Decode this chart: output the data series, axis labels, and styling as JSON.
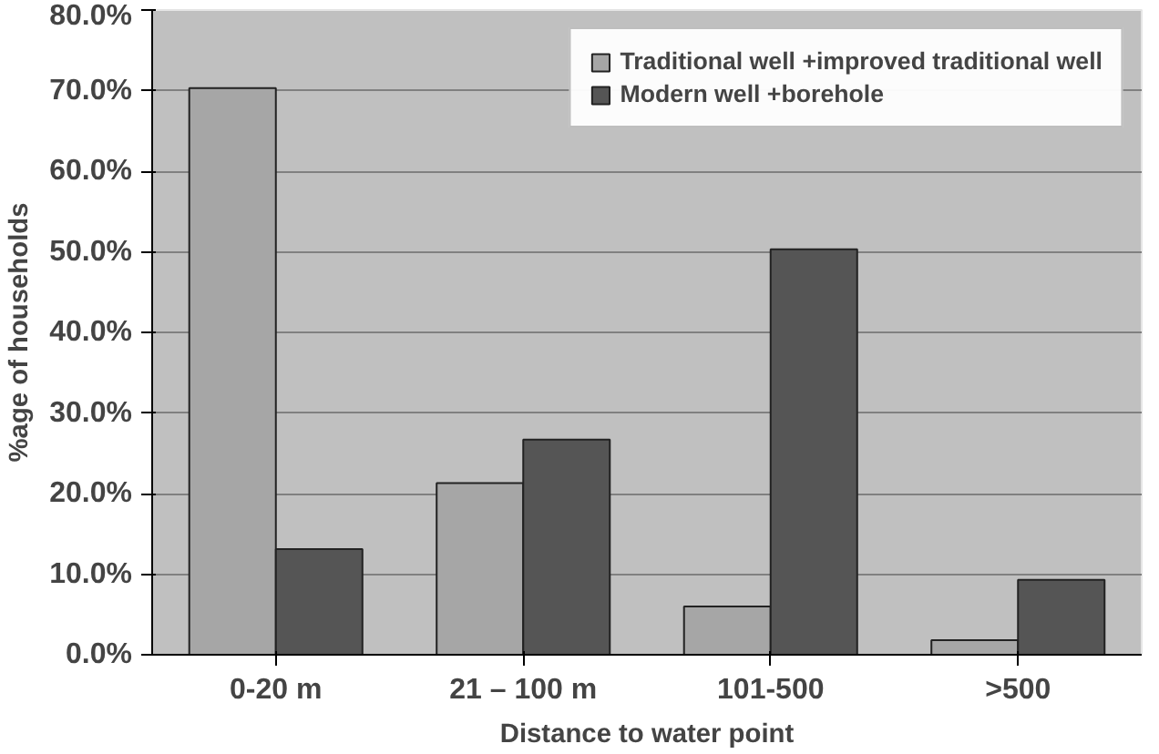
{
  "chart_data": {
    "type": "bar",
    "xlabel": "Distance to water point",
    "ylabel": "%age of households",
    "categories": [
      "0-20 m",
      "21 – 100 m",
      "101-500",
      ">500"
    ],
    "series": [
      {
        "name": "Traditional well +improved traditional well",
        "color": "#a6a6a6",
        "values": [
          70.3,
          21.3,
          6.0,
          1.8
        ]
      },
      {
        "name": "Modern well +borehole",
        "color": "#555555",
        "values": [
          13.1,
          26.7,
          50.3,
          9.3
        ]
      }
    ],
    "ylim": [
      0,
      80
    ],
    "yticks": [
      {
        "value": 0,
        "label": "0.0%"
      },
      {
        "value": 10,
        "label": "10.0%"
      },
      {
        "value": 20,
        "label": "20.0%"
      },
      {
        "value": 30,
        "label": "30.0%"
      },
      {
        "value": 40,
        "label": "40.0%"
      },
      {
        "value": 50,
        "label": "50.0%"
      },
      {
        "value": 60,
        "label": "60.0%"
      },
      {
        "value": 70,
        "label": "70.0%"
      },
      {
        "value": 80,
        "label": "80.0%"
      }
    ],
    "grid": "y",
    "legend": "top right"
  }
}
